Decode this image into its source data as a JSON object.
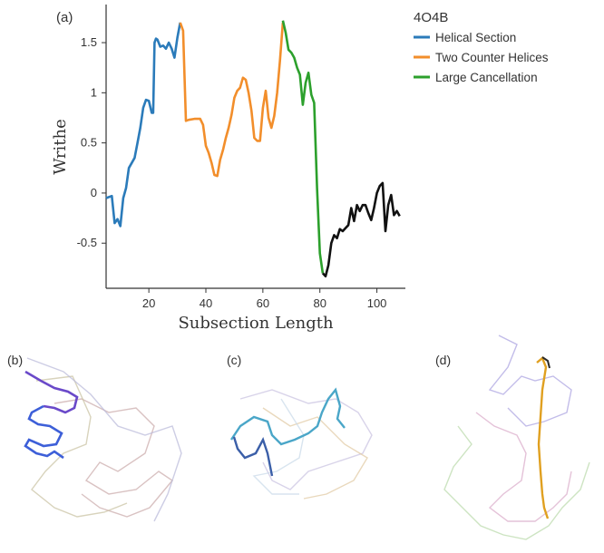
{
  "panel_labels": {
    "a": "(a)",
    "b": "(b)",
    "c": "(c)",
    "d": "(d)"
  },
  "chart_data": {
    "type": "line",
    "title": "",
    "xlabel": "Subsection Length",
    "ylabel": "Writhe",
    "xlim": [
      5,
      110
    ],
    "ylim": [
      -0.95,
      1.88
    ],
    "xticks": [
      20,
      40,
      60,
      80,
      100
    ],
    "yticks": [
      -0.5,
      0,
      0.5,
      1,
      1.5
    ],
    "grid": false,
    "legend": {
      "title": "4O4B",
      "placement": "right"
    },
    "series": [
      {
        "name": "Helical Section",
        "color": "#2b7bba",
        "points": [
          [
            5,
            -0.05
          ],
          [
            7,
            -0.03
          ],
          [
            8,
            -0.3
          ],
          [
            9,
            -0.26
          ],
          [
            10,
            -0.33
          ],
          [
            11,
            -0.05
          ],
          [
            12,
            0.05
          ],
          [
            13,
            0.25
          ],
          [
            14,
            0.3
          ],
          [
            15,
            0.35
          ],
          [
            16,
            0.5
          ],
          [
            17,
            0.65
          ],
          [
            18,
            0.85
          ],
          [
            19,
            0.93
          ],
          [
            20,
            0.92
          ],
          [
            21,
            0.8
          ],
          [
            21.5,
            0.8
          ],
          [
            22,
            1.5
          ],
          [
            22.5,
            1.54
          ],
          [
            23,
            1.53
          ],
          [
            24,
            1.46
          ],
          [
            25,
            1.47
          ],
          [
            26,
            1.44
          ],
          [
            27,
            1.5
          ],
          [
            28,
            1.44
          ],
          [
            29,
            1.35
          ],
          [
            30,
            1.55
          ],
          [
            31,
            1.7
          ]
        ]
      },
      {
        "name": "Two Counter Helices",
        "color": "#f28e2b",
        "points": [
          [
            31,
            1.7
          ],
          [
            32,
            1.62
          ],
          [
            33,
            0.72
          ],
          [
            34,
            0.73
          ],
          [
            36,
            0.74
          ],
          [
            38,
            0.74
          ],
          [
            39,
            0.68
          ],
          [
            40,
            0.47
          ],
          [
            41,
            0.4
          ],
          [
            42,
            0.3
          ],
          [
            43,
            0.18
          ],
          [
            44,
            0.17
          ],
          [
            45,
            0.33
          ],
          [
            46,
            0.43
          ],
          [
            47,
            0.55
          ],
          [
            48,
            0.65
          ],
          [
            49,
            0.78
          ],
          [
            50,
            0.95
          ],
          [
            51,
            1.02
          ],
          [
            52,
            1.05
          ],
          [
            53,
            1.15
          ],
          [
            54,
            1.13
          ],
          [
            55,
            1.0
          ],
          [
            56,
            0.82
          ],
          [
            57,
            0.55
          ],
          [
            58,
            0.52
          ],
          [
            59,
            0.52
          ],
          [
            60,
            0.85
          ],
          [
            61,
            1.02
          ],
          [
            62,
            0.75
          ],
          [
            63,
            0.65
          ],
          [
            64,
            0.77
          ],
          [
            65,
            1.0
          ],
          [
            66,
            1.32
          ],
          [
            67,
            1.7
          ]
        ]
      },
      {
        "name": "Large Cancellation",
        "color": "#2ca02c",
        "points": [
          [
            67,
            1.72
          ],
          [
            68,
            1.6
          ],
          [
            69,
            1.43
          ],
          [
            70,
            1.4
          ],
          [
            71,
            1.35
          ],
          [
            72,
            1.25
          ],
          [
            73,
            1.18
          ],
          [
            74,
            0.88
          ],
          [
            75,
            1.1
          ],
          [
            76,
            1.2
          ],
          [
            77,
            0.98
          ],
          [
            78,
            0.9
          ],
          [
            79,
            0.05
          ],
          [
            80,
            -0.6
          ],
          [
            81,
            -0.8
          ]
        ]
      },
      {
        "name": "",
        "color": "#111111",
        "points": [
          [
            81,
            -0.8
          ],
          [
            82,
            -0.83
          ],
          [
            83,
            -0.72
          ],
          [
            84,
            -0.5
          ],
          [
            85,
            -0.42
          ],
          [
            86,
            -0.45
          ],
          [
            87,
            -0.36
          ],
          [
            88,
            -0.38
          ],
          [
            89,
            -0.35
          ],
          [
            90,
            -0.32
          ],
          [
            91,
            -0.15
          ],
          [
            92,
            -0.28
          ],
          [
            93,
            -0.12
          ],
          [
            94,
            -0.18
          ],
          [
            95,
            -0.12
          ],
          [
            96,
            -0.12
          ],
          [
            97,
            -0.2
          ],
          [
            98,
            -0.27
          ],
          [
            99,
            -0.15
          ],
          [
            100,
            0.0
          ],
          [
            101,
            0.07
          ],
          [
            102,
            0.1
          ],
          [
            103,
            -0.38
          ],
          [
            104,
            -0.12
          ],
          [
            105,
            -0.02
          ],
          [
            106,
            -0.22
          ],
          [
            107,
            -0.18
          ],
          [
            108,
            -0.23
          ]
        ]
      }
    ]
  },
  "knot_panels": {
    "b": {
      "highlight_colors": [
        "#6a49c9",
        "#3d5fd8"
      ],
      "faint_colors": [
        "#c9a8a8",
        "#c8c0a0",
        "#b8b8d8"
      ]
    },
    "c": {
      "highlight_colors": [
        "#4aa6c8",
        "#3b5fa8"
      ],
      "faint_colors": [
        "#c8c0e0",
        "#e0c8a0",
        "#c8d8e8"
      ]
    },
    "d": {
      "highlight_colors": [
        "#e0a020",
        "#2a2a2a"
      ],
      "faint_colors": [
        "#a8a0e0",
        "#d8a8c8",
        "#b8d8a8"
      ]
    }
  }
}
